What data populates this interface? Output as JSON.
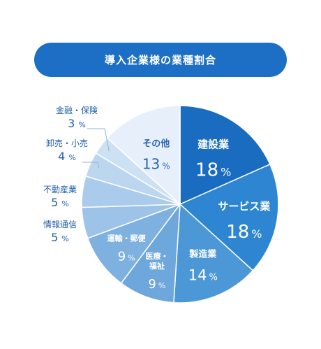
{
  "chart_data": {
    "type": "pie",
    "title": "導入企業様の業種割合",
    "unit": "%",
    "slices": [
      {
        "label": "建設業",
        "value": 18,
        "color": "#1a6cc1"
      },
      {
        "label": "サービス業",
        "value": 18,
        "color": "#2e86d3"
      },
      {
        "label": "製造業",
        "value": 14,
        "color": "#4c97d6"
      },
      {
        "label": "医療・福祉",
        "value": 9,
        "color": "#6ea7dc"
      },
      {
        "label": "運輸・郵便",
        "value": 9,
        "color": "#7fb1e0"
      },
      {
        "label": "情報通信",
        "value": 5,
        "color": "#9dc3e8"
      },
      {
        "label": "不動産業",
        "value": 5,
        "color": "#aacbeb"
      },
      {
        "label": "卸売・小売",
        "value": 4,
        "color": "#bcd6ef"
      },
      {
        "label": "金融・保険",
        "value": 3,
        "color": "#cce1f4"
      },
      {
        "label": "その他",
        "value": 13,
        "color": "#e7f0fa"
      }
    ]
  }
}
